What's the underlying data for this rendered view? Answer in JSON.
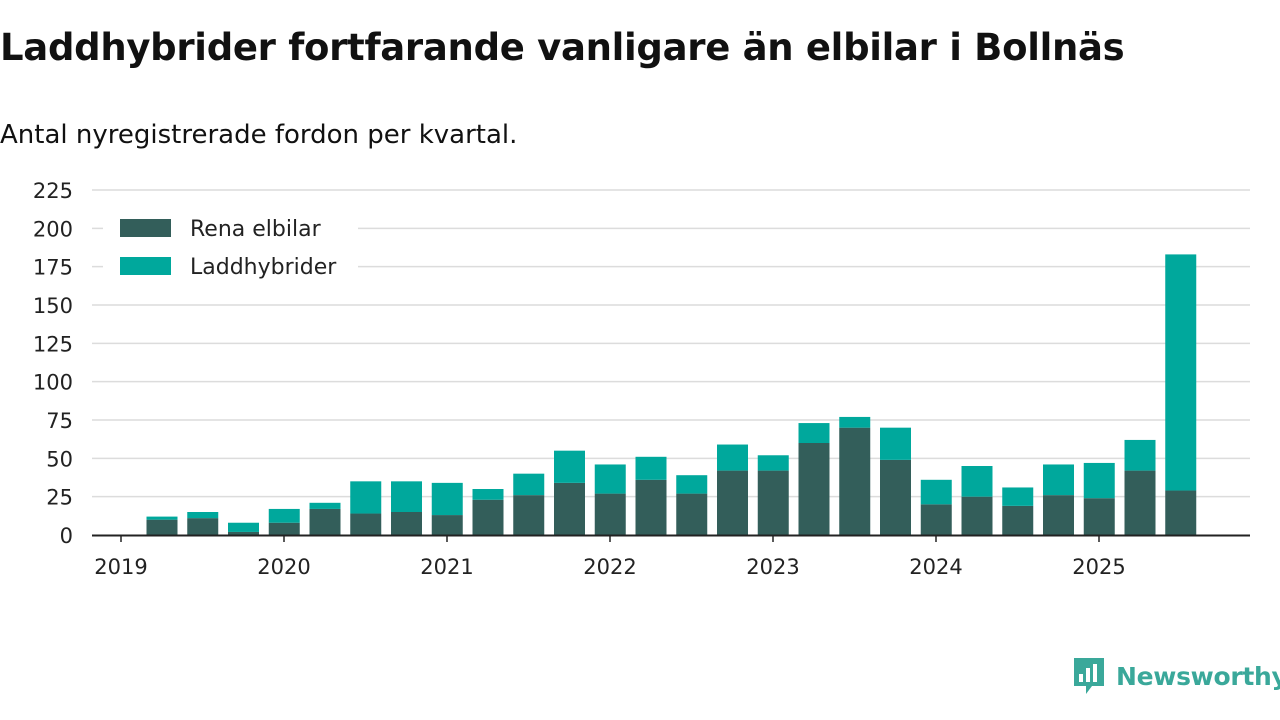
{
  "title": "Laddhybrider fortfarande vanligare än elbilar i Bollnäs",
  "subtitle": "Antal nyregistrerade fordon per kvartal.",
  "brand": "Newsworthy",
  "colors": {
    "rena_elbilar": "#335e5a",
    "laddhybrider": "#00a89c",
    "grid": "#dcdcdc",
    "axis": "#222222",
    "brand": "#3aa89a"
  },
  "chart_data": {
    "type": "bar",
    "stacked": true,
    "title": "Laddhybrider fortfarande vanligare än elbilar i Bollnäs",
    "subtitle": "Antal nyregistrerade fordon per kvartal.",
    "xlabel": "",
    "ylabel": "",
    "ylim": [
      0,
      225
    ],
    "yticks": [
      0,
      25,
      50,
      75,
      100,
      125,
      150,
      175,
      200,
      225
    ],
    "xticks": [
      "2019",
      "2020",
      "2021",
      "2022",
      "2023",
      "2024",
      "2025"
    ],
    "grid": true,
    "legend_position": "top-left",
    "categories": [
      "2019 Q2",
      "2019 Q3",
      "2019 Q4",
      "2020 Q1",
      "2020 Q2",
      "2020 Q3",
      "2020 Q4",
      "2021 Q1",
      "2021 Q2",
      "2021 Q3",
      "2021 Q4",
      "2022 Q1",
      "2022 Q2",
      "2022 Q3",
      "2022 Q4",
      "2023 Q1",
      "2023 Q2",
      "2023 Q3",
      "2023 Q4",
      "2024 Q1",
      "2024 Q2",
      "2024 Q3",
      "2024 Q4",
      "2025 Q1",
      "2025 Q2",
      "2025 Q3"
    ],
    "series": [
      {
        "name": "Rena elbilar",
        "values": [
          10,
          11,
          2,
          8,
          17,
          14,
          15,
          13,
          23,
          26,
          34,
          27,
          36,
          27,
          42,
          42,
          60,
          70,
          49,
          20,
          25,
          19,
          26,
          24,
          42,
          29
        ]
      },
      {
        "name": "Laddhybrider",
        "values": [
          2,
          4,
          6,
          9,
          4,
          21,
          20,
          21,
          7,
          14,
          21,
          19,
          15,
          12,
          17,
          10,
          13,
          7,
          21,
          16,
          20,
          12,
          20,
          23,
          20,
          154
        ]
      }
    ]
  }
}
